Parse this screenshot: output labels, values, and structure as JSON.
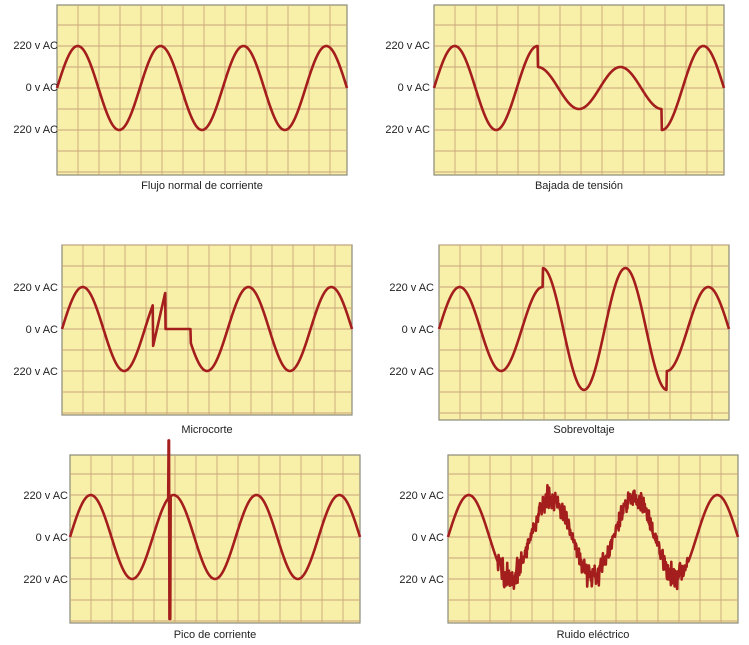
{
  "colors": {
    "panel_bg": "#f8f0a8",
    "grid": "#c9a57a",
    "wave": "#a51e1e",
    "border": "#8a8a7a"
  },
  "panels": [
    {
      "id": "normal",
      "caption": "Flujo normal de corriente",
      "labels": [
        "220 v AC",
        "0 v AC",
        "220 v AC"
      ],
      "signal": "normal"
    },
    {
      "id": "sag",
      "caption": "Bajada de tensión",
      "labels": [
        "220 v AC",
        "0 v AC",
        "220 v AC"
      ],
      "signal": "sag"
    },
    {
      "id": "interrupt",
      "caption": "Microcorte",
      "labels": [
        "220 v AC",
        "0 v AC",
        "220 v AC"
      ],
      "signal": "interrupt"
    },
    {
      "id": "surge",
      "caption": "Sobrevoltaje",
      "labels": [
        "220 v AC",
        "0 v AC",
        "220 v AC"
      ],
      "signal": "surge"
    },
    {
      "id": "spike",
      "caption": "Pico de corriente",
      "labels": [
        "220 v AC",
        "0 v AC",
        "220 v AC"
      ],
      "signal": "spike"
    },
    {
      "id": "noise",
      "caption": "Ruido eléctrico",
      "labels": [
        "220 v AC",
        "0 v AC",
        "220 v AC"
      ],
      "signal": "noise"
    }
  ]
}
